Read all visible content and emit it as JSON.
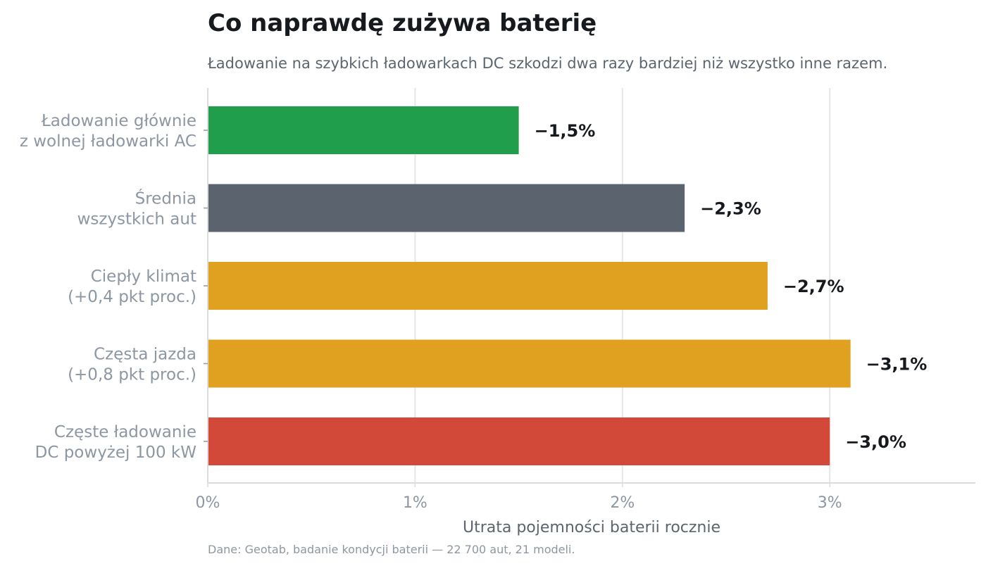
{
  "chart_data": {
    "type": "bar",
    "orientation": "horizontal",
    "title": "Co naprawdę zużywa baterię",
    "subtitle": "Ładowanie na szybkich ładowarkach DC szkodzi dwa razy bardziej niż wszystko inne razem.",
    "categories": [
      [
        "Ładowanie głównie",
        "z wolnej ładowarki AC"
      ],
      [
        "Średnia",
        "wszystkich aut"
      ],
      [
        "Ciepły klimat",
        "(+0,4 pkt proc.)"
      ],
      [
        "Częsta jazda",
        "(+0,8 pkt proc.)"
      ],
      [
        "Częste ładowanie",
        "DC powyżej 100 kW"
      ]
    ],
    "values": [
      1.5,
      2.3,
      2.7,
      3.1,
      3.0
    ],
    "value_labels": [
      "−1,5%",
      "−2,3%",
      "−2,7%",
      "−3,1%",
      "−3,0%"
    ],
    "colors": [
      "#219e4c",
      "#5b646e",
      "#e0a020",
      "#e0a020",
      "#d2493a"
    ],
    "xlabel": "Utrata pojemności baterii rocznie",
    "ylabel": "",
    "xlim": [
      0,
      3.7
    ],
    "xticks": [
      0,
      1,
      2,
      3
    ],
    "xtick_labels": [
      "0%",
      "1%",
      "2%",
      "3%"
    ],
    "grid": "vertical",
    "legend": "none",
    "source": "Dane: Geotab, badanie kondycji baterii — 22 700 aut, 21 modeli."
  },
  "colors": {
    "grid": "#e6e6e6",
    "axis": "#dcdcdc"
  }
}
